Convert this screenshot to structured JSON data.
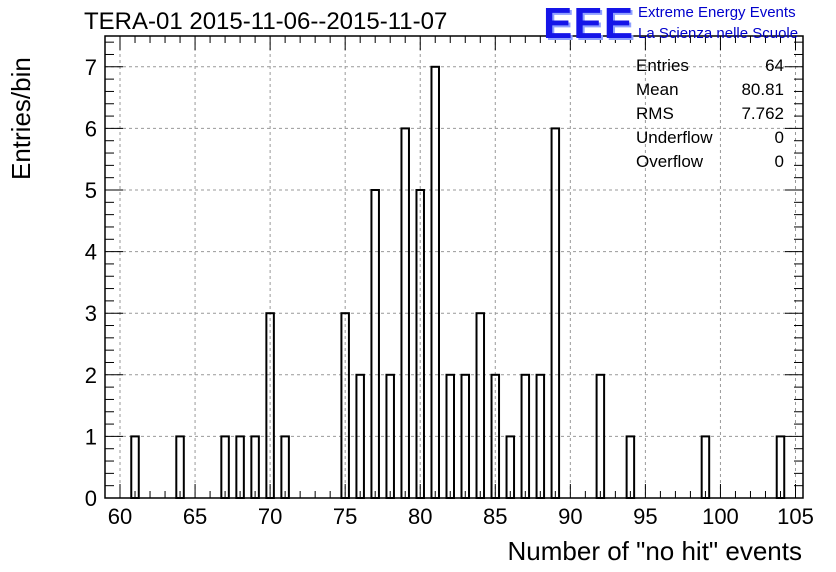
{
  "chart_data": {
    "type": "bar",
    "title": "TERA-01 2015-11-06--2015-11-07",
    "xlabel": "Number of \"no hit\" events",
    "ylabel": "Entries/bin",
    "xlim": [
      59,
      105.5
    ],
    "ylim": [
      0,
      7.5
    ],
    "bin_width": 0.5,
    "x_ticks": [
      60,
      65,
      70,
      75,
      80,
      85,
      90,
      95,
      100,
      105
    ],
    "y_ticks": [
      0,
      1,
      2,
      3,
      4,
      5,
      6,
      7
    ],
    "grid": true,
    "bins": [
      {
        "x": 61,
        "count": 1
      },
      {
        "x": 64,
        "count": 1
      },
      {
        "x": 67,
        "count": 1
      },
      {
        "x": 68,
        "count": 1
      },
      {
        "x": 69,
        "count": 1
      },
      {
        "x": 70,
        "count": 3
      },
      {
        "x": 71,
        "count": 1
      },
      {
        "x": 75,
        "count": 3
      },
      {
        "x": 76,
        "count": 2
      },
      {
        "x": 77,
        "count": 5
      },
      {
        "x": 78,
        "count": 2
      },
      {
        "x": 79,
        "count": 6
      },
      {
        "x": 80,
        "count": 5
      },
      {
        "x": 81,
        "count": 7
      },
      {
        "x": 82,
        "count": 2
      },
      {
        "x": 83,
        "count": 2
      },
      {
        "x": 84,
        "count": 3
      },
      {
        "x": 85,
        "count": 2
      },
      {
        "x": 86,
        "count": 1
      },
      {
        "x": 87,
        "count": 2
      },
      {
        "x": 88,
        "count": 2
      },
      {
        "x": 89,
        "count": 6
      },
      {
        "x": 92,
        "count": 2
      },
      {
        "x": 94,
        "count": 1
      },
      {
        "x": 99,
        "count": 1
      },
      {
        "x": 104,
        "count": 1
      }
    ],
    "stats": [
      {
        "label": "Entries",
        "value": "64"
      },
      {
        "label": "Mean",
        "value": "80.81"
      },
      {
        "label": "RMS",
        "value": "7.762"
      },
      {
        "label": "Underflow",
        "value": "0"
      },
      {
        "label": "Overflow",
        "value": "0"
      }
    ],
    "bar_color": "#000000",
    "grid_color": "#999999"
  },
  "logo": {
    "mark": "EEE",
    "line1": "Extreme Energy Events",
    "line2": "La Scienza nelle Scuole",
    "color": "#1515e8"
  }
}
